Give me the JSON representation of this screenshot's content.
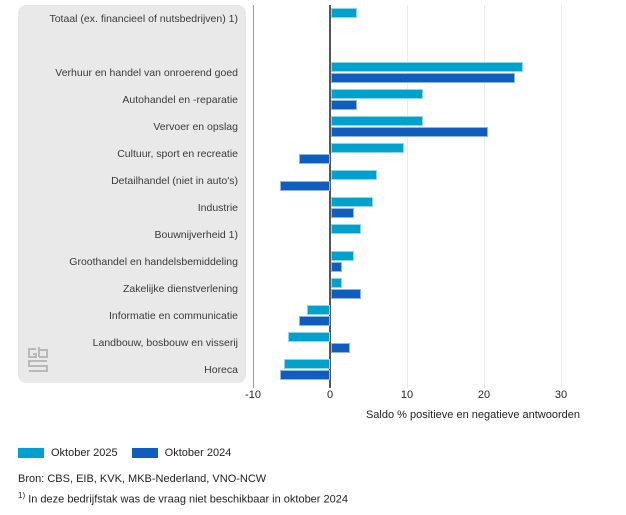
{
  "chart_data": {
    "type": "bar",
    "orientation": "horizontal",
    "title": "",
    "xlabel": "Saldo % positieve en negatieve antwoorden",
    "ylabel": "",
    "xlim": [
      -10,
      35
    ],
    "xticks": [
      -10,
      0,
      10,
      20,
      30
    ],
    "grid": true,
    "legend_position": "bottom-left",
    "gap_after_first_category": true,
    "categories": [
      "Totaal (ex. financieel of nutsbedrijven) 1)",
      "Verhuur en handel van onroerend goed",
      "Autohandel en -reparatie",
      "Vervoer en opslag",
      "Cultuur, sport en recreatie",
      "Detailhandel (niet in auto's)",
      "Industrie",
      "Bouwnijverheid 1)",
      "Groothandel en handelsbemiddeling",
      "Zakelijke dienstverlening",
      "Informatie en communicatie",
      "Landbouw, bosbouw en visserij",
      "Horeca"
    ],
    "series": [
      {
        "name": "Oktober 2025",
        "color": "#00a1cd",
        "values": [
          3.5,
          25,
          12,
          12,
          9.5,
          6,
          5.5,
          4,
          3,
          1.5,
          -3,
          -5.5,
          -6
        ]
      },
      {
        "name": "Oktober 2024",
        "color": "#0f5dbc",
        "values": [
          null,
          24,
          3.5,
          20.5,
          -4,
          -6.5,
          3,
          null,
          1.5,
          4,
          -4,
          2.5,
          -6.5
        ]
      }
    ]
  },
  "legend": {
    "items": [
      {
        "label": "Oktober 2025",
        "color": "#00a1cd"
      },
      {
        "label": "Oktober 2024",
        "color": "#0f5dbc"
      }
    ]
  },
  "footer": {
    "source": "Bron: CBS, EIB, KVK, MKB-Nederland, VNO-NCW",
    "footnote_marker": "1)",
    "footnote_text": "In deze bedrijfstak was de vraag niet beschikbaar in oktober 2024"
  },
  "logo": {
    "name": "cbs-logo"
  }
}
